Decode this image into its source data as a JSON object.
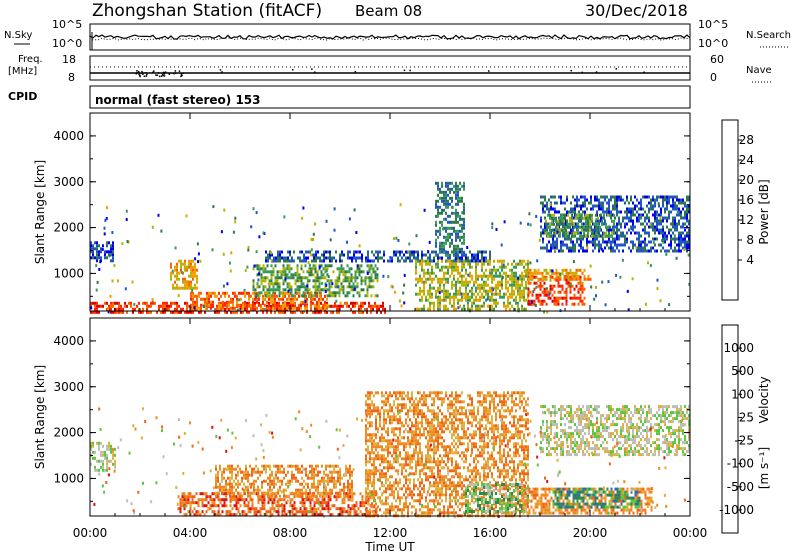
{
  "header": {
    "title": "Zhongshan Station (fitACF)",
    "beam": "Beam 08",
    "date": "30/Dec/2018"
  },
  "top_panels": {
    "nsky_label": "N.Sky",
    "nsky_ticks": [
      "10^5",
      "10^0"
    ],
    "nsearch_label": "N.Search",
    "nsearch_ticks": [
      "10^5",
      "10^0"
    ],
    "freq_label": "Freq.",
    "freq_unit": "[MHz]",
    "freq_ticks": [
      "18",
      "8"
    ],
    "nave_label": "Nave",
    "nave_ticks": [
      "60",
      "0"
    ],
    "cpid_label": "CPID",
    "cpid_text": "normal (fast stereo) 153"
  },
  "chart_data": [
    {
      "type": "heatmap",
      "name": "power",
      "ylabel": "Slant Range [km]",
      "xlabel": "",
      "yticks": [
        "4000",
        "3000",
        "2000",
        "1000"
      ],
      "ylim": [
        180,
        4500
      ],
      "xlim": [
        0,
        24
      ],
      "colorbar": {
        "label": "Power [dB]",
        "ticks": [
          "28",
          "24",
          "20",
          "16",
          "12",
          "8",
          "4"
        ],
        "colors": [
          "#0000f0",
          "#2255c8",
          "#2e7a44",
          "#3a9a5a",
          "#b4b400",
          "#f0a000",
          "#ff6000",
          "#ff2800",
          "#dc0000"
        ]
      },
      "regions": [
        {
          "t": [
            0.0,
            0.9
          ],
          "r": [
            1300,
            1700
          ],
          "level": 1
        },
        {
          "t": [
            0.0,
            11.8
          ],
          "r": [
            180,
            380
          ],
          "level": 7
        },
        {
          "t": [
            3.2,
            4.3
          ],
          "r": [
            700,
            1300
          ],
          "level": 5
        },
        {
          "t": [
            4.0,
            9.5
          ],
          "r": [
            250,
            600
          ],
          "level": 6
        },
        {
          "t": [
            6.5,
            11.5
          ],
          "r": [
            500,
            1200
          ],
          "level": 3
        },
        {
          "t": [
            7.0,
            16.0
          ],
          "r": [
            1300,
            1500
          ],
          "level": 1
        },
        {
          "t": [
            13.0,
            17.5
          ],
          "r": [
            200,
            1300
          ],
          "level": 4
        },
        {
          "t": [
            13.8,
            15.0
          ],
          "r": [
            1400,
            3000
          ],
          "level": 2
        },
        {
          "t": [
            17.5,
            19.8
          ],
          "r": [
            350,
            950
          ],
          "level": 7
        },
        {
          "t": [
            17.5,
            20.0
          ],
          "r": [
            850,
            1100
          ],
          "level": 5
        },
        {
          "t": [
            18.0,
            24.0
          ],
          "r": [
            1500,
            2700
          ],
          "level": 1
        },
        {
          "t": [
            18.2,
            21.0
          ],
          "r": [
            1800,
            2300
          ],
          "level": 3
        }
      ]
    },
    {
      "type": "heatmap",
      "name": "velocity",
      "ylabel": "Slant Range [km]",
      "xlabel": "Time UT",
      "xticks": [
        "00:00",
        "04:00",
        "08:00",
        "12:00",
        "16:00",
        "20:00",
        "00:00"
      ],
      "yticks": [
        "4000",
        "3000",
        "2000",
        "1000"
      ],
      "ylim": [
        180,
        4500
      ],
      "xlim": [
        0,
        24
      ],
      "colorbar": {
        "label": "Velocity",
        "unit": "[m s⁻¹]",
        "ticks": [
          "1000",
          "500",
          "100",
          "25",
          "-25",
          "-100",
          "-500",
          "-1000"
        ],
        "colors": [
          "#1e3cc8",
          "#2e6ab0",
          "#2e8a4a",
          "#5ac83c",
          "#bebeb4",
          "#e0b040",
          "#f08a20",
          "#f06418",
          "#e01010"
        ]
      },
      "regions": [
        {
          "t": [
            0.0,
            1.0
          ],
          "r": [
            1200,
            1800
          ],
          "level": 4
        },
        {
          "t": [
            3.5,
            11.5
          ],
          "r": [
            200,
            700
          ],
          "level": 7
        },
        {
          "t": [
            5.0,
            10.5
          ],
          "r": [
            600,
            1300
          ],
          "level": 6
        },
        {
          "t": [
            11.0,
            17.5
          ],
          "r": [
            200,
            2900
          ],
          "level": 6
        },
        {
          "t": [
            15.0,
            17.5
          ],
          "r": [
            300,
            900
          ],
          "level": 3
        },
        {
          "t": [
            17.3,
            22.5
          ],
          "r": [
            250,
            800
          ],
          "level": 6
        },
        {
          "t": [
            18.5,
            22.0
          ],
          "r": [
            350,
            800
          ],
          "level": 2
        },
        {
          "t": [
            18.0,
            24.0
          ],
          "r": [
            1500,
            2600
          ],
          "level": 4
        }
      ]
    }
  ]
}
